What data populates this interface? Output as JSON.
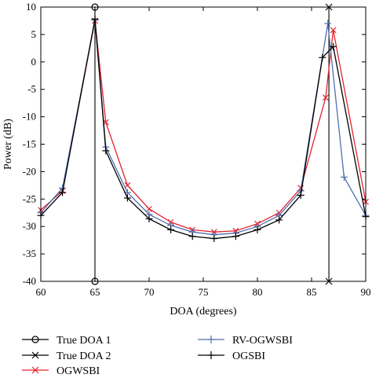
{
  "chart_data": {
    "type": "line",
    "title": "",
    "xlabel": "DOA (degrees)",
    "ylabel": "Power (dB)",
    "xlim": [
      60,
      90
    ],
    "ylim": [
      -40,
      10
    ],
    "xticks": [
      60,
      65,
      70,
      75,
      80,
      85,
      90
    ],
    "yticks": [
      10,
      5,
      0,
      -5,
      -10,
      -15,
      -20,
      -25,
      -30,
      -35,
      -40
    ],
    "grid": false,
    "legend_position": "bottom",
    "true_doa": [
      {
        "name": "True DOA 1",
        "x": 65,
        "marker": "circle",
        "color": "#000000"
      },
      {
        "name": "True DOA 2",
        "x": 86.6,
        "marker": "x",
        "color": "#000000"
      }
    ],
    "series": [
      {
        "name": "OGWSBI",
        "color": "#e3232c",
        "marker": "x",
        "x": [
          60,
          62,
          65,
          66,
          68,
          70,
          72,
          74,
          76,
          78,
          80,
          82,
          84,
          86.3,
          87,
          90
        ],
        "y": [
          -27,
          -23.5,
          7.5,
          -11,
          -22.5,
          -26.8,
          -29.2,
          -30.6,
          -31,
          -30.8,
          -29.5,
          -27.5,
          -23,
          -6.5,
          5.8,
          -25.5
        ]
      },
      {
        "name": "RV-OGWSBI",
        "color": "#4f6fb0",
        "marker": "+",
        "x": [
          60,
          62,
          65,
          66,
          68,
          70,
          72,
          74,
          76,
          78,
          80,
          82,
          84,
          86.5,
          88,
          90
        ],
        "y": [
          -27.5,
          -23,
          7.6,
          -15.5,
          -23.8,
          -27.8,
          -29.8,
          -31,
          -31.5,
          -31.2,
          -30,
          -28,
          -23.5,
          7,
          -21,
          -28
        ]
      },
      {
        "name": "OGSBI",
        "color": "#000000",
        "marker": "+",
        "x": [
          60,
          62,
          65,
          66,
          68,
          70,
          72,
          74,
          76,
          78,
          80,
          82,
          84,
          86,
          87,
          90
        ],
        "y": [
          -28,
          -23.8,
          7.8,
          -16.2,
          -24.8,
          -28.6,
          -30.6,
          -31.8,
          -32.2,
          -31.8,
          -30.6,
          -28.8,
          -24.3,
          0.8,
          2.8,
          -28.2
        ]
      }
    ]
  }
}
